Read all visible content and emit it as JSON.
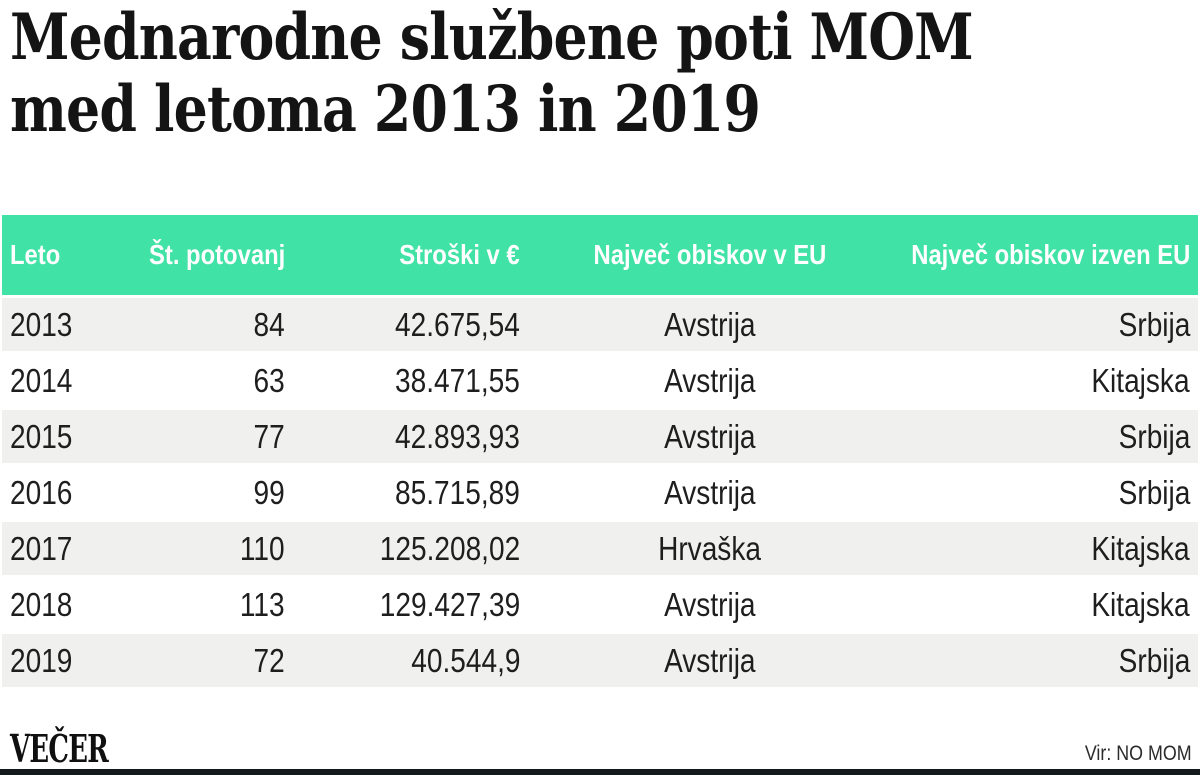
{
  "header": {
    "title_line1": "Mednarodne službene poti MOM",
    "title_line2": "med letoma 2013 in 2019"
  },
  "table": {
    "columns": [
      {
        "label": "Leto",
        "align": "left"
      },
      {
        "label": "Št. potovanj",
        "align": "right"
      },
      {
        "label": "Stroški v €",
        "align": "right"
      },
      {
        "label": "Največ obiskov v EU",
        "align": "center"
      },
      {
        "label": "Največ obiskov izven EU",
        "align": "right"
      }
    ],
    "rows": [
      [
        "2013",
        "84",
        "42.675,54",
        "Avstrija",
        "Srbija"
      ],
      [
        "2014",
        "63",
        "38.471,55",
        "Avstrija",
        "Kitajska"
      ],
      [
        "2015",
        "77",
        "42.893,93",
        "Avstrija",
        "Srbija"
      ],
      [
        "2016",
        "99",
        "85.715,89",
        "Avstrija",
        "Srbija"
      ],
      [
        "2017",
        "110",
        "125.208,02",
        "Hrvaška",
        "Kitajska"
      ],
      [
        "2018",
        "113",
        "129.427,39",
        "Avstrija",
        "Kitajska"
      ],
      [
        "2019",
        "72",
        "40.544,9",
        "Avstrija",
        "Srbija"
      ]
    ]
  },
  "footer": {
    "brand": "VEČER",
    "source": "Vir: NO MOM"
  },
  "colors": {
    "header_bg": "#40e2a5",
    "header_text": "#ffffff",
    "row_alt_bg": "#f0f0ee",
    "body_text": "#1e1e1e",
    "bottom_bar": "#141a1c",
    "title_text": "#141414"
  },
  "chart_data": {
    "type": "table",
    "title": "Mednarodne službene poti MOM med letoma 2013 in 2019",
    "columns": [
      "Leto",
      "Št. potovanj",
      "Stroški v €",
      "Največ obiskov v EU",
      "Največ obiskov izven EU"
    ],
    "rows": [
      [
        2013,
        84,
        "42.675,54",
        "Avstrija",
        "Srbija"
      ],
      [
        2014,
        63,
        "38.471,55",
        "Avstrija",
        "Kitajska"
      ],
      [
        2015,
        77,
        "42.893,93",
        "Avstrija",
        "Srbija"
      ],
      [
        2016,
        99,
        "85.715,89",
        "Avstrija",
        "Srbija"
      ],
      [
        2017,
        110,
        "125.208,02",
        "Hrvaška",
        "Kitajska"
      ],
      [
        2018,
        113,
        "129.427,39",
        "Avstrija",
        "Kitajska"
      ],
      [
        2019,
        72,
        "40.544,9",
        "Avstrija",
        "Srbija"
      ]
    ],
    "source": "Vir: NO MOM",
    "layout": {
      "header_bg": "#40e2a5",
      "zebra_stripes": true,
      "grid": false
    }
  }
}
